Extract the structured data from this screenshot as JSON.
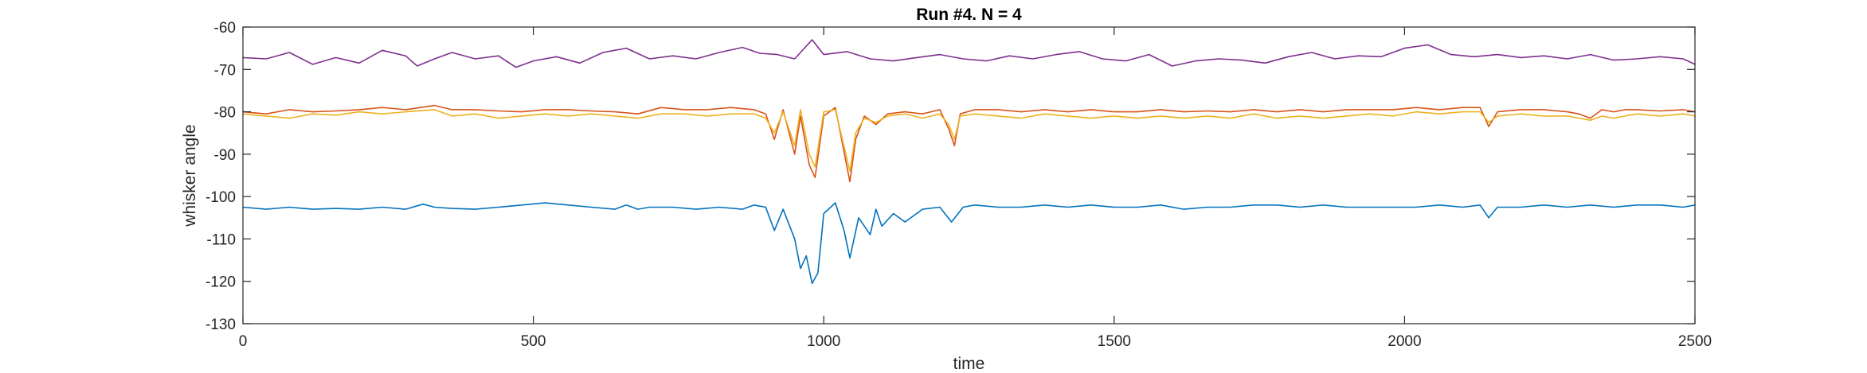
{
  "chart_data": {
    "type": "line",
    "title": "Run #4. N = 4",
    "xlabel": "time",
    "ylabel": "whisker angle",
    "xlim": [
      0,
      2500
    ],
    "ylim": [
      -130,
      -60
    ],
    "xticks": [
      0,
      500,
      1000,
      1500,
      2000,
      2500
    ],
    "yticks": [
      -60,
      -70,
      -80,
      -90,
      -100,
      -110,
      -120,
      -130
    ],
    "grid": false,
    "legend": "none",
    "series": [
      {
        "color": "#7E2F8E",
        "x": [
          0,
          40,
          80,
          120,
          160,
          200,
          240,
          280,
          300,
          330,
          360,
          400,
          440,
          470,
          500,
          540,
          580,
          620,
          660,
          700,
          740,
          780,
          820,
          860,
          890,
          920,
          950,
          980,
          1000,
          1040,
          1080,
          1120,
          1160,
          1200,
          1240,
          1280,
          1320,
          1360,
          1400,
          1440,
          1480,
          1520,
          1560,
          1600,
          1640,
          1680,
          1720,
          1760,
          1800,
          1840,
          1880,
          1920,
          1960,
          2000,
          2040,
          2080,
          2120,
          2160,
          2200,
          2240,
          2280,
          2320,
          2360,
          2400,
          2440,
          2480,
          2500
        ],
        "y": [
          -67.2,
          -67.5,
          -66.0,
          -68.8,
          -67.2,
          -68.5,
          -65.5,
          -66.8,
          -69.2,
          -67.5,
          -66.0,
          -67.5,
          -66.8,
          -69.5,
          -68.0,
          -67.0,
          -68.5,
          -66.0,
          -65.0,
          -67.5,
          -66.8,
          -67.5,
          -66.0,
          -64.8,
          -66.2,
          -66.5,
          -67.5,
          -63.0,
          -66.5,
          -65.8,
          -67.5,
          -68.0,
          -67.2,
          -66.5,
          -67.5,
          -68.0,
          -66.8,
          -67.5,
          -66.5,
          -65.8,
          -67.5,
          -68.0,
          -66.5,
          -69.2,
          -68.0,
          -67.5,
          -67.8,
          -68.5,
          -67.0,
          -66.0,
          -67.5,
          -66.8,
          -67.0,
          -65.0,
          -64.2,
          -66.5,
          -67.0,
          -66.5,
          -67.2,
          -66.8,
          -67.5,
          -66.5,
          -67.8,
          -67.5,
          -67.0,
          -67.5,
          -68.8
        ]
      },
      {
        "color": "#D95319",
        "x": [
          0,
          40,
          80,
          120,
          160,
          200,
          240,
          280,
          330,
          360,
          400,
          440,
          480,
          520,
          560,
          600,
          640,
          680,
          720,
          760,
          800,
          840,
          880,
          900,
          915,
          930,
          950,
          960,
          975,
          985,
          1000,
          1020,
          1045,
          1055,
          1070,
          1090,
          1110,
          1140,
          1170,
          1200,
          1215,
          1225,
          1235,
          1260,
          1300,
          1340,
          1380,
          1420,
          1460,
          1500,
          1540,
          1580,
          1620,
          1660,
          1700,
          1740,
          1780,
          1820,
          1860,
          1900,
          1940,
          1980,
          2020,
          2060,
          2100,
          2130,
          2145,
          2160,
          2200,
          2240,
          2280,
          2300,
          2320,
          2340,
          2360,
          2380,
          2400,
          2440,
          2480,
          2500
        ],
        "y": [
          -80.0,
          -80.5,
          -79.5,
          -80.0,
          -79.8,
          -79.5,
          -79.0,
          -79.5,
          -78.5,
          -79.5,
          -79.5,
          -79.8,
          -80.0,
          -79.5,
          -79.5,
          -79.8,
          -80.0,
          -80.5,
          -79.0,
          -79.5,
          -79.5,
          -79.0,
          -79.5,
          -80.5,
          -86.5,
          -79.5,
          -90.0,
          -81.0,
          -92.5,
          -95.5,
          -81.0,
          -79.0,
          -96.5,
          -86.5,
          -81.0,
          -83.0,
          -80.5,
          -80.0,
          -80.5,
          -79.5,
          -84.0,
          -88.0,
          -80.5,
          -79.5,
          -79.5,
          -80.0,
          -79.5,
          -80.0,
          -79.5,
          -80.0,
          -80.0,
          -79.5,
          -80.0,
          -79.8,
          -80.0,
          -79.5,
          -80.0,
          -79.5,
          -80.0,
          -79.5,
          -79.5,
          -79.5,
          -79.0,
          -79.5,
          -79.0,
          -79.0,
          -83.5,
          -80.0,
          -79.5,
          -79.5,
          -80.0,
          -80.5,
          -81.5,
          -79.5,
          -80.0,
          -79.5,
          -79.5,
          -79.8,
          -79.5,
          -80.0
        ]
      },
      {
        "color": "#EDB120",
        "x": [
          0,
          40,
          80,
          120,
          160,
          200,
          240,
          280,
          330,
          360,
          400,
          440,
          480,
          520,
          560,
          600,
          640,
          680,
          720,
          760,
          800,
          840,
          880,
          900,
          915,
          930,
          950,
          960,
          975,
          985,
          1000,
          1020,
          1045,
          1055,
          1070,
          1090,
          1110,
          1140,
          1170,
          1200,
          1215,
          1225,
          1235,
          1260,
          1300,
          1340,
          1380,
          1420,
          1460,
          1500,
          1540,
          1580,
          1620,
          1660,
          1700,
          1740,
          1780,
          1820,
          1860,
          1900,
          1940,
          1980,
          2020,
          2060,
          2100,
          2130,
          2145,
          2160,
          2200,
          2240,
          2280,
          2300,
          2320,
          2340,
          2360,
          2380,
          2400,
          2440,
          2480,
          2500
        ],
        "y": [
          -80.5,
          -81.0,
          -81.5,
          -80.5,
          -80.8,
          -80.0,
          -80.5,
          -80.0,
          -79.5,
          -81.0,
          -80.5,
          -81.5,
          -81.0,
          -80.5,
          -81.0,
          -80.5,
          -81.0,
          -81.5,
          -80.5,
          -80.5,
          -81.0,
          -80.5,
          -80.5,
          -81.5,
          -85.0,
          -80.0,
          -88.0,
          -79.5,
          -90.0,
          -93.0,
          -80.0,
          -79.5,
          -94.0,
          -85.0,
          -81.5,
          -82.5,
          -81.0,
          -80.5,
          -81.5,
          -80.5,
          -83.0,
          -86.5,
          -81.0,
          -80.5,
          -81.0,
          -81.5,
          -80.5,
          -81.0,
          -81.5,
          -81.0,
          -81.5,
          -81.0,
          -81.5,
          -81.0,
          -81.5,
          -80.5,
          -81.5,
          -81.0,
          -81.5,
          -81.0,
          -80.5,
          -81.0,
          -80.0,
          -80.5,
          -80.0,
          -80.0,
          -82.5,
          -81.0,
          -80.5,
          -81.0,
          -81.0,
          -81.5,
          -82.0,
          -81.0,
          -81.5,
          -81.0,
          -80.5,
          -81.0,
          -80.5,
          -81.0
        ]
      },
      {
        "color": "#0072BD",
        "x": [
          0,
          40,
          80,
          120,
          160,
          200,
          240,
          280,
          310,
          330,
          360,
          400,
          440,
          480,
          520,
          560,
          600,
          640,
          660,
          680,
          700,
          740,
          780,
          820,
          860,
          880,
          900,
          915,
          930,
          950,
          960,
          970,
          980,
          990,
          1000,
          1020,
          1035,
          1045,
          1060,
          1080,
          1090,
          1100,
          1120,
          1140,
          1170,
          1200,
          1220,
          1240,
          1260,
          1300,
          1340,
          1380,
          1420,
          1460,
          1500,
          1540,
          1580,
          1620,
          1660,
          1700,
          1740,
          1780,
          1820,
          1860,
          1900,
          1940,
          1980,
          2020,
          2060,
          2100,
          2130,
          2145,
          2160,
          2200,
          2240,
          2280,
          2320,
          2360,
          2400,
          2440,
          2480,
          2500
        ],
        "y": [
          -102.5,
          -103.0,
          -102.5,
          -103.0,
          -102.8,
          -103.0,
          -102.5,
          -103.0,
          -101.8,
          -102.5,
          -102.8,
          -103.0,
          -102.5,
          -102.0,
          -101.5,
          -102.0,
          -102.5,
          -103.0,
          -102.0,
          -103.0,
          -102.5,
          -102.5,
          -103.0,
          -102.5,
          -103.0,
          -102.0,
          -102.5,
          -108.0,
          -103.0,
          -110.0,
          -117.0,
          -114.0,
          -120.5,
          -118.0,
          -104.0,
          -101.5,
          -108.0,
          -114.5,
          -105.0,
          -109.0,
          -103.0,
          -107.0,
          -104.0,
          -106.0,
          -103.0,
          -102.5,
          -106.0,
          -102.5,
          -102.0,
          -102.5,
          -102.5,
          -102.0,
          -102.5,
          -102.0,
          -102.5,
          -102.5,
          -102.0,
          -103.0,
          -102.5,
          -102.5,
          -102.0,
          -102.0,
          -102.5,
          -102.0,
          -102.5,
          -102.5,
          -102.5,
          -102.5,
          -102.0,
          -102.5,
          -102.0,
          -105.0,
          -102.5,
          -102.5,
          -102.0,
          -102.5,
          -102.0,
          -102.5,
          -102.0,
          -102.0,
          -102.5,
          -102.0
        ]
      }
    ]
  }
}
